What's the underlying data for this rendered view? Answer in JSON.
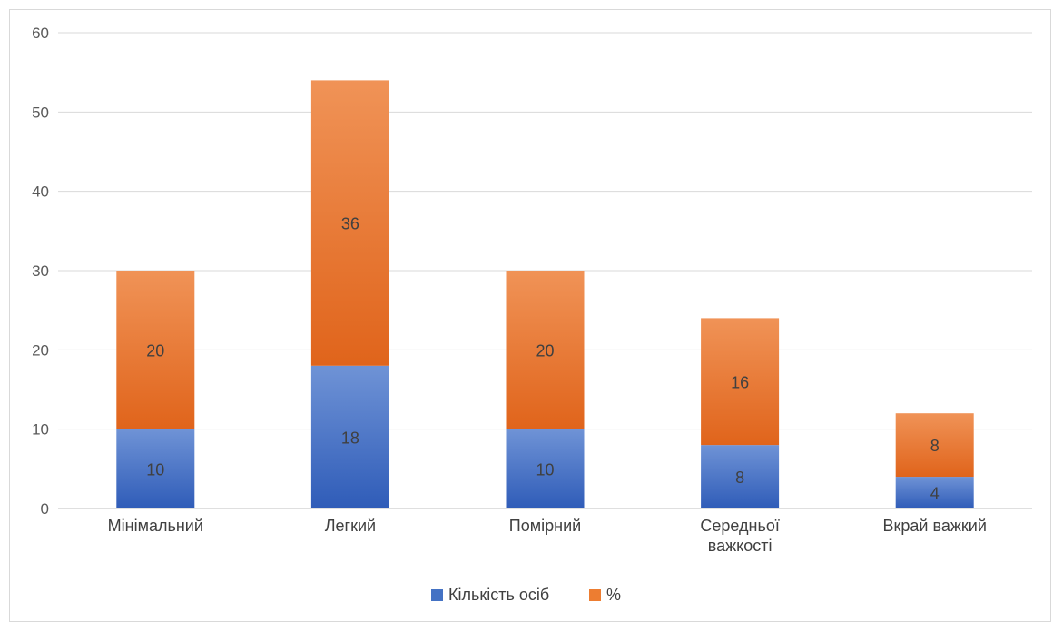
{
  "chart_data": {
    "type": "bar",
    "stacked": true,
    "title": "",
    "xlabel": "",
    "ylabel": "",
    "ylim": [
      0,
      60
    ],
    "yticks": [
      0,
      10,
      20,
      30,
      40,
      50,
      60
    ],
    "grid": true,
    "legend_position": "bottom",
    "categories": [
      [
        "Мінімальний"
      ],
      [
        "Легкий"
      ],
      [
        "Помірний"
      ],
      [
        "Середньої",
        "важкості"
      ],
      [
        "Вкрай важкий"
      ]
    ],
    "series": [
      {
        "name": "Кількість осіб",
        "color": "#4472c4",
        "values": [
          10,
          18,
          10,
          8,
          4
        ]
      },
      {
        "name": "%",
        "color": "#ed7d31",
        "values": [
          20,
          36,
          20,
          16,
          8
        ]
      }
    ]
  }
}
